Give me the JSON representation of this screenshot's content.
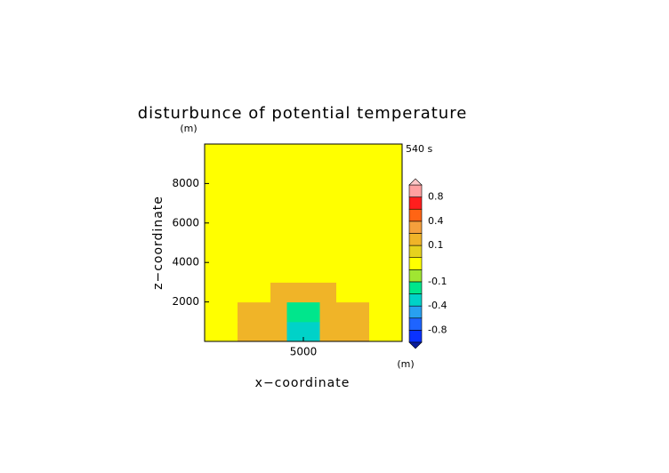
{
  "chart_data": {
    "type": "contour",
    "title": "disturbunce of potential temperature",
    "y_unit": "(m)",
    "x_unit": "(m)",
    "time_label": "540 s",
    "xlabel": "x−coordinate",
    "ylabel": "z−coordinate",
    "xlim": [
      0,
      10000
    ],
    "ylim": [
      0,
      10000
    ],
    "xticks": [
      5000
    ],
    "yticks": [
      2000,
      4000,
      6000,
      8000
    ],
    "z": [
      [
        0,
        0,
        0.1,
        0.1,
        0.1,
        -0.3,
        -0.3,
        0.1,
        0.1,
        0.1,
        0,
        0
      ],
      [
        0,
        0,
        0.1,
        0.1,
        0.1,
        -0.2,
        -0.2,
        0.1,
        0.1,
        0.1,
        0,
        0
      ],
      [
        0,
        0,
        0,
        0,
        0.1,
        0.1,
        0.1,
        0.1,
        0,
        0,
        0,
        0
      ],
      [
        0,
        0,
        0,
        0,
        0,
        0,
        0,
        0,
        0,
        0,
        0,
        0
      ],
      [
        0,
        0,
        0,
        0,
        0,
        0,
        0,
        0,
        0,
        0,
        0,
        0
      ],
      [
        0,
        0,
        0,
        0,
        0,
        0,
        0,
        0,
        0,
        0,
        0,
        0
      ],
      [
        0,
        0,
        0,
        0,
        0,
        0,
        0,
        0,
        0,
        0,
        0,
        0
      ],
      [
        0,
        0,
        0,
        0,
        0,
        0,
        0,
        0,
        0,
        0,
        0,
        0
      ],
      [
        0,
        0,
        0,
        0,
        0,
        0,
        0,
        0,
        0,
        0,
        0,
        0
      ],
      [
        0,
        0,
        0,
        0,
        0,
        0,
        0,
        0,
        0,
        0,
        0,
        0
      ]
    ],
    "colorbar": {
      "levels": [
        -1,
        -0.8,
        -0.6,
        -0.4,
        -0.2,
        -0.1,
        -0.05,
        0.05,
        0.1,
        0.2,
        0.4,
        0.6,
        0.8,
        1
      ],
      "colors": [
        "#0a32ff",
        "#1e64ff",
        "#28a0f0",
        "#00d2c8",
        "#00e68c",
        "#a0e632",
        "#ffff00",
        "#e6d21e",
        "#f0b428",
        "#f5a03c",
        "#ff6414",
        "#ff1e1e",
        "#ffa0a0"
      ],
      "under_color": "#0a1e9b",
      "over_color": "#ffc8c8",
      "ticks": [
        0.8,
        0.4,
        0.1,
        -0.1,
        -0.4,
        -0.8
      ]
    }
  }
}
